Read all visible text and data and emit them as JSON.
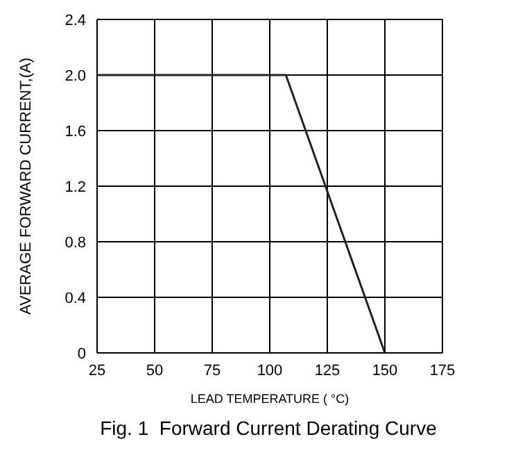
{
  "chart_data": {
    "type": "line",
    "title": "Fig. 1  Forward Current Derating Curve",
    "xlabel": "LEAD TEMPERATURE ( °C)",
    "ylabel": "AVERAGE FORWARD CURRENT,(A)",
    "x": [
      25,
      107,
      150
    ],
    "series": [
      {
        "color": "#222222",
        "values": [
          2.0,
          2.0,
          0
        ]
      }
    ],
    "xlim": [
      25,
      175
    ],
    "xticks": [
      25,
      50,
      75,
      100,
      125,
      150,
      175
    ],
    "ylim": [
      0,
      2.4
    ],
    "yticks": [
      {
        "value": 0,
        "label": "0"
      },
      {
        "value": 0.4,
        "label": "0.4"
      },
      {
        "value": 0.8,
        "label": "0.8"
      },
      {
        "value": 1.2,
        "label": "1.2"
      },
      {
        "value": 1.6,
        "label": "1.6"
      },
      {
        "value": 2.0,
        "label": "2.0"
      },
      {
        "value": 2.4,
        "label": "2.4"
      }
    ],
    "grid": true,
    "marker": "none",
    "line_style": "solid"
  }
}
